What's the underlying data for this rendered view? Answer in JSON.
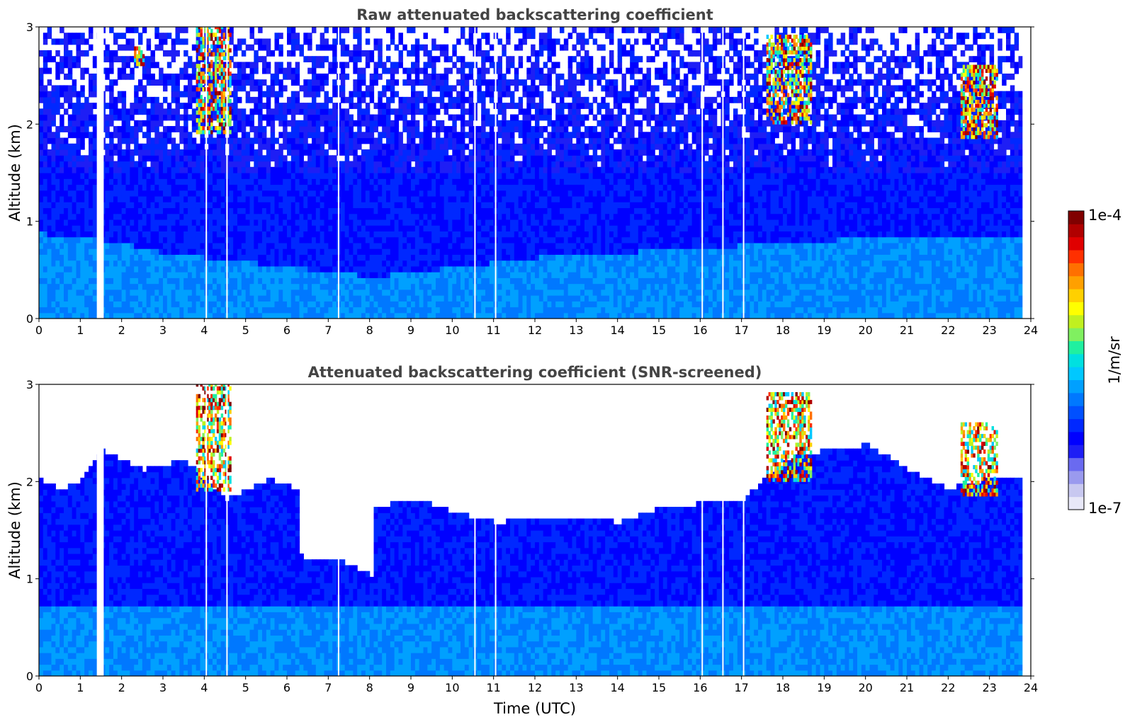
{
  "chart_data": [
    {
      "type": "heatmap",
      "title": "Raw attenuated backscattering coefficient",
      "xlabel": "",
      "ylabel": "Altitude (km)",
      "xlim": [
        0,
        24
      ],
      "ylim": [
        0,
        3
      ],
      "x_ticks": [
        "0",
        "1",
        "2",
        "3",
        "4",
        "5",
        "6",
        "7",
        "8",
        "9",
        "10",
        "11",
        "12",
        "13",
        "14",
        "15",
        "16",
        "17",
        "18",
        "19",
        "20",
        "21",
        "22",
        "23",
        "24"
      ],
      "y_ticks": [
        "0",
        "1",
        "2",
        "3"
      ],
      "x_units": "hours UTC",
      "y_units": "km",
      "screened": false,
      "data_end_hour": 23.8,
      "data_gaps_hours": [
        1.45,
        1.55,
        4.05,
        4.55,
        7.25,
        10.55,
        11.05,
        16.05,
        16.55,
        17.05
      ],
      "boundary_layer_top_km": [
        [
          0,
          0.85
        ],
        [
          2,
          0.75
        ],
        [
          3,
          0.65
        ],
        [
          5,
          0.55
        ],
        [
          8,
          0.4
        ],
        [
          12,
          0.6
        ],
        [
          16,
          0.7
        ],
        [
          20,
          0.8
        ],
        [
          24,
          0.8
        ]
      ],
      "features": [
        {
          "kind": "cloud",
          "t_start": 3.8,
          "t_end": 4.6,
          "z_bottom": 1.9,
          "z_top": 3.0,
          "peak": "1e-4"
        },
        {
          "kind": "cloud",
          "t_start": 2.3,
          "t_end": 2.5,
          "z_bottom": 2.6,
          "z_top": 2.8,
          "peak": "5e-5"
        },
        {
          "kind": "cloud",
          "t_start": 17.6,
          "t_end": 18.7,
          "z_bottom": 2.0,
          "z_top": 2.9,
          "peak": "1e-4"
        },
        {
          "kind": "cloud",
          "t_start": 22.3,
          "t_end": 23.2,
          "z_bottom": 1.85,
          "z_top": 2.6,
          "peak": "1e-4"
        }
      ]
    },
    {
      "type": "heatmap",
      "title": "Attenuated backscattering coefficient (SNR-screened)",
      "xlabel": "Time (UTC)",
      "ylabel": "Altitude (km)",
      "xlim": [
        0,
        24
      ],
      "ylim": [
        0,
        3
      ],
      "x_ticks": [
        "0",
        "1",
        "2",
        "3",
        "4",
        "5",
        "6",
        "7",
        "8",
        "9",
        "10",
        "11",
        "12",
        "13",
        "14",
        "15",
        "16",
        "17",
        "18",
        "19",
        "20",
        "21",
        "22",
        "23",
        "24"
      ],
      "y_ticks": [
        "0",
        "1",
        "2",
        "3"
      ],
      "x_units": "hours UTC",
      "y_units": "km",
      "screened": true,
      "data_end_hour": 23.8,
      "data_gaps_hours": [
        1.45,
        1.55,
        4.05,
        4.55,
        7.25,
        10.55,
        11.05,
        16.05,
        16.55,
        17.05
      ],
      "signal_top_km": [
        [
          0,
          2.0
        ],
        [
          0.5,
          1.9
        ],
        [
          1.0,
          2.0
        ],
        [
          1.5,
          2.3
        ],
        [
          2.5,
          2.1
        ],
        [
          3.5,
          2.2
        ],
        [
          4.5,
          1.8
        ],
        [
          5.5,
          2.0
        ],
        [
          6.2,
          1.9
        ],
        [
          6.3,
          1.2
        ],
        [
          7.0,
          1.2
        ],
        [
          7.5,
          1.1
        ],
        [
          8.0,
          1.0
        ],
        [
          8.1,
          1.7
        ],
        [
          9,
          1.8
        ],
        [
          10,
          1.65
        ],
        [
          11,
          1.55
        ],
        [
          12,
          1.6
        ],
        [
          13,
          1.6
        ],
        [
          14,
          1.55
        ],
        [
          15,
          1.7
        ],
        [
          16,
          1.75
        ],
        [
          17,
          1.8
        ],
        [
          18,
          2.2
        ],
        [
          19,
          2.3
        ],
        [
          20,
          2.35
        ],
        [
          21,
          2.1
        ],
        [
          22,
          1.9
        ],
        [
          23,
          2.0
        ],
        [
          23.8,
          2.0
        ]
      ],
      "features": [
        {
          "kind": "cloud",
          "t_start": 3.8,
          "t_end": 4.6,
          "z_bottom": 1.9,
          "z_top": 3.0,
          "peak": "1e-4"
        },
        {
          "kind": "cloud",
          "t_start": 17.6,
          "t_end": 18.7,
          "z_bottom": 2.0,
          "z_top": 2.9,
          "peak": "1e-4"
        },
        {
          "kind": "cloud",
          "t_start": 22.3,
          "t_end": 23.2,
          "z_bottom": 1.85,
          "z_top": 2.6,
          "peak": "1e-4"
        }
      ]
    }
  ],
  "colorbar": {
    "label": "1/m/sr",
    "min_label": "1e-7",
    "max_label": "1e-4",
    "scale": "log",
    "colors": [
      "#e8e8f8",
      "#c8c8f0",
      "#9a9aee",
      "#6a6af0",
      "#1e1ef5",
      "#0000ff",
      "#0028ff",
      "#0050ff",
      "#0078ff",
      "#00a0ff",
      "#00c8ff",
      "#00e0e0",
      "#20f0a0",
      "#80f060",
      "#c0f020",
      "#ffff00",
      "#ffd000",
      "#ffa000",
      "#ff7000",
      "#ff3000",
      "#e00000",
      "#b00000",
      "#800000"
    ]
  }
}
